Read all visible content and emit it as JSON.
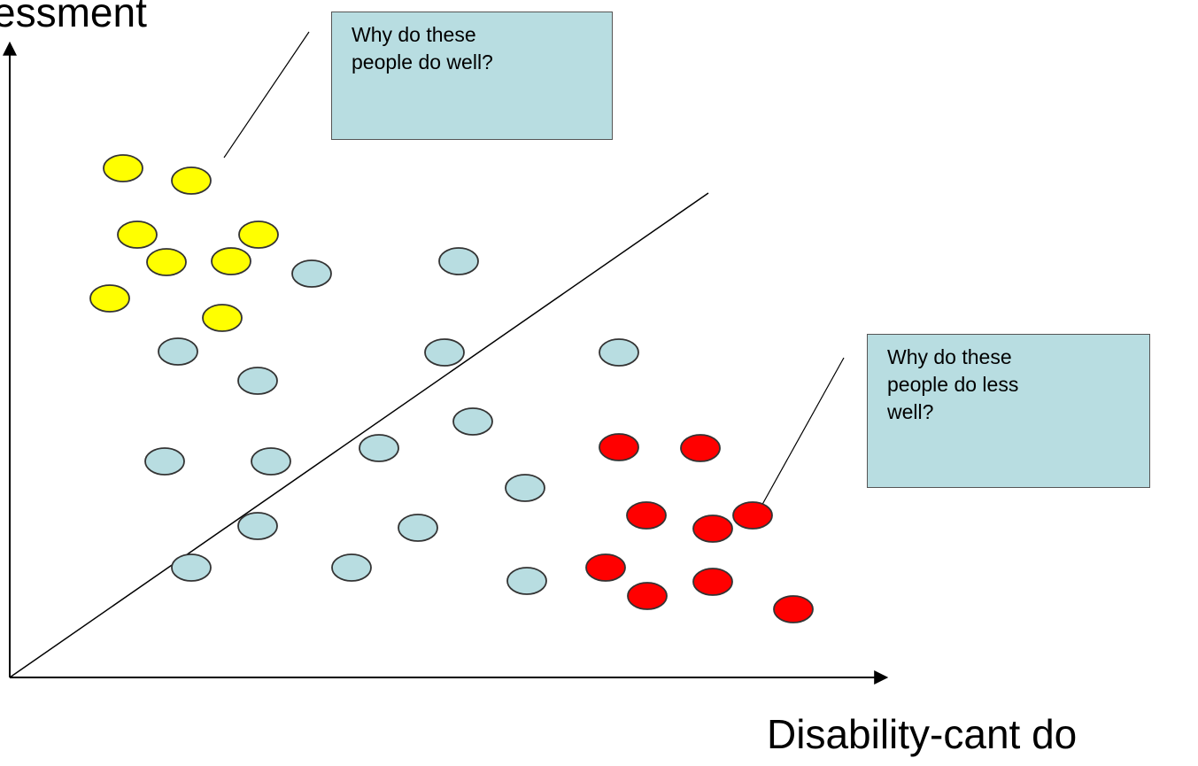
{
  "axes": {
    "y_label": "essment",
    "x_label": "Disability-cant do"
  },
  "callouts": {
    "top": "Why do these\npeople do well?",
    "right": "Why do these\npeople do less\nwell?"
  },
  "colors": {
    "axis": "#000000",
    "yellow_fill": "#ffff00",
    "blue_fill": "#b8dde1",
    "red_fill": "#ff0000",
    "callout_fill": "#b8dde1",
    "outline": "#333333"
  }
}
